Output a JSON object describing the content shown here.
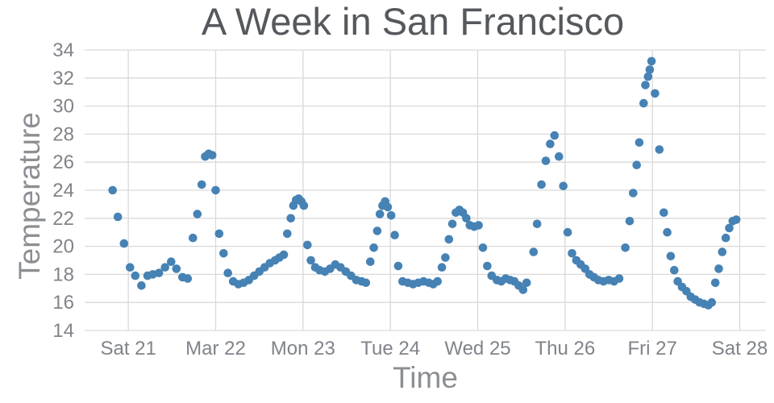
{
  "title": "A Week in San Francisco",
  "axes": {
    "x_label": "Time",
    "y_label": "Temperature"
  },
  "colors": {
    "dot": "#4682b4",
    "grid": "#d9d9d9",
    "tick_text": "#80848a",
    "title_text": "#55585c",
    "axis_label_text": "#8b8f93",
    "background": "#ffffff"
  },
  "chart_data": {
    "type": "scatter",
    "title": "A Week in San Francisco",
    "xlabel": "Time",
    "ylabel": "Temperature",
    "x_unit": "days since Sat 21 00:00",
    "x_domain": [
      -0.5,
      7.3
    ],
    "y_domain": [
      14,
      34
    ],
    "grid": true,
    "legend": false,
    "x_ticks": [
      {
        "t": 0,
        "label": "Sat 21"
      },
      {
        "t": 1,
        "label": "Mar 22"
      },
      {
        "t": 2,
        "label": "Mon 23"
      },
      {
        "t": 3,
        "label": "Tue 24"
      },
      {
        "t": 4,
        "label": "Wed 25"
      },
      {
        "t": 5,
        "label": "Thu 26"
      },
      {
        "t": 6,
        "label": "Fri 27"
      },
      {
        "t": 7,
        "label": "Sat 28"
      }
    ],
    "y_ticks": [
      14,
      16,
      18,
      20,
      22,
      24,
      26,
      28,
      30,
      32,
      34
    ],
    "points": [
      [
        -0.18,
        24.0
      ],
      [
        -0.12,
        22.1
      ],
      [
        -0.05,
        20.2
      ],
      [
        0.02,
        18.5
      ],
      [
        0.08,
        17.9
      ],
      [
        0.15,
        17.2
      ],
      [
        0.22,
        17.9
      ],
      [
        0.28,
        18.0
      ],
      [
        0.35,
        18.1
      ],
      [
        0.42,
        18.5
      ],
      [
        0.49,
        18.9
      ],
      [
        0.55,
        18.4
      ],
      [
        0.62,
        17.8
      ],
      [
        0.68,
        17.7
      ],
      [
        0.74,
        20.6
      ],
      [
        0.79,
        22.3
      ],
      [
        0.84,
        24.4
      ],
      [
        0.88,
        26.4
      ],
      [
        0.92,
        26.6
      ],
      [
        0.96,
        26.5
      ],
      [
        1.0,
        24.0
      ],
      [
        1.04,
        20.9
      ],
      [
        1.09,
        19.5
      ],
      [
        1.14,
        18.1
      ],
      [
        1.2,
        17.5
      ],
      [
        1.26,
        17.3
      ],
      [
        1.32,
        17.4
      ],
      [
        1.38,
        17.6
      ],
      [
        1.44,
        17.9
      ],
      [
        1.5,
        18.2
      ],
      [
        1.56,
        18.5
      ],
      [
        1.62,
        18.8
      ],
      [
        1.68,
        19.0
      ],
      [
        1.73,
        19.2
      ],
      [
        1.78,
        19.4
      ],
      [
        1.82,
        20.9
      ],
      [
        1.86,
        22.0
      ],
      [
        1.89,
        22.9
      ],
      [
        1.92,
        23.3
      ],
      [
        1.95,
        23.4
      ],
      [
        1.98,
        23.2
      ],
      [
        2.01,
        22.9
      ],
      [
        2.05,
        20.1
      ],
      [
        2.09,
        19.0
      ],
      [
        2.14,
        18.5
      ],
      [
        2.19,
        18.3
      ],
      [
        2.25,
        18.2
      ],
      [
        2.31,
        18.4
      ],
      [
        2.37,
        18.7
      ],
      [
        2.43,
        18.5
      ],
      [
        2.49,
        18.2
      ],
      [
        2.55,
        17.9
      ],
      [
        2.61,
        17.6
      ],
      [
        2.67,
        17.5
      ],
      [
        2.72,
        17.4
      ],
      [
        2.77,
        18.9
      ],
      [
        2.81,
        19.9
      ],
      [
        2.85,
        21.1
      ],
      [
        2.88,
        22.3
      ],
      [
        2.91,
        22.9
      ],
      [
        2.94,
        23.2
      ],
      [
        2.97,
        22.8
      ],
      [
        3.01,
        22.2
      ],
      [
        3.05,
        20.8
      ],
      [
        3.09,
        18.6
      ],
      [
        3.14,
        17.5
      ],
      [
        3.2,
        17.4
      ],
      [
        3.26,
        17.3
      ],
      [
        3.32,
        17.4
      ],
      [
        3.38,
        17.5
      ],
      [
        3.44,
        17.4
      ],
      [
        3.49,
        17.3
      ],
      [
        3.54,
        17.5
      ],
      [
        3.59,
        18.5
      ],
      [
        3.63,
        19.2
      ],
      [
        3.67,
        20.5
      ],
      [
        3.71,
        21.6
      ],
      [
        3.75,
        22.4
      ],
      [
        3.79,
        22.6
      ],
      [
        3.83,
        22.4
      ],
      [
        3.87,
        22.0
      ],
      [
        3.91,
        21.5
      ],
      [
        3.96,
        21.4
      ],
      [
        4.01,
        21.5
      ],
      [
        4.06,
        19.9
      ],
      [
        4.11,
        18.6
      ],
      [
        4.16,
        17.9
      ],
      [
        4.22,
        17.6
      ],
      [
        4.27,
        17.5
      ],
      [
        4.32,
        17.7
      ],
      [
        4.37,
        17.6
      ],
      [
        4.42,
        17.5
      ],
      [
        4.47,
        17.2
      ],
      [
        4.52,
        16.9
      ],
      [
        4.56,
        17.4
      ],
      [
        4.64,
        19.6
      ],
      [
        4.68,
        21.6
      ],
      [
        4.73,
        24.4
      ],
      [
        4.78,
        26.1
      ],
      [
        4.83,
        27.3
      ],
      [
        4.88,
        27.9
      ],
      [
        4.93,
        26.4
      ],
      [
        4.98,
        24.3
      ],
      [
        5.03,
        21.0
      ],
      [
        5.08,
        19.5
      ],
      [
        5.13,
        19.0
      ],
      [
        5.18,
        18.7
      ],
      [
        5.23,
        18.4
      ],
      [
        5.28,
        18.0
      ],
      [
        5.33,
        17.8
      ],
      [
        5.38,
        17.6
      ],
      [
        5.44,
        17.5
      ],
      [
        5.5,
        17.6
      ],
      [
        5.56,
        17.5
      ],
      [
        5.62,
        17.7
      ],
      [
        5.69,
        19.9
      ],
      [
        5.74,
        21.8
      ],
      [
        5.78,
        23.8
      ],
      [
        5.82,
        25.8
      ],
      [
        5.85,
        27.4
      ],
      [
        5.9,
        30.2
      ],
      [
        5.92,
        31.5
      ],
      [
        5.95,
        32.1
      ],
      [
        5.97,
        32.6
      ],
      [
        5.99,
        33.2
      ],
      [
        6.03,
        30.9
      ],
      [
        6.08,
        26.9
      ],
      [
        6.13,
        22.4
      ],
      [
        6.17,
        21.0
      ],
      [
        6.21,
        19.3
      ],
      [
        6.25,
        18.3
      ],
      [
        6.29,
        17.5
      ],
      [
        6.34,
        17.1
      ],
      [
        6.39,
        16.8
      ],
      [
        6.44,
        16.4
      ],
      [
        6.49,
        16.2
      ],
      [
        6.54,
        16.0
      ],
      [
        6.59,
        15.9
      ],
      [
        6.64,
        15.8
      ],
      [
        6.68,
        16.0
      ],
      [
        6.72,
        17.4
      ],
      [
        6.76,
        18.4
      ],
      [
        6.8,
        19.6
      ],
      [
        6.84,
        20.6
      ],
      [
        6.88,
        21.3
      ],
      [
        6.92,
        21.8
      ],
      [
        6.96,
        21.9
      ]
    ]
  }
}
